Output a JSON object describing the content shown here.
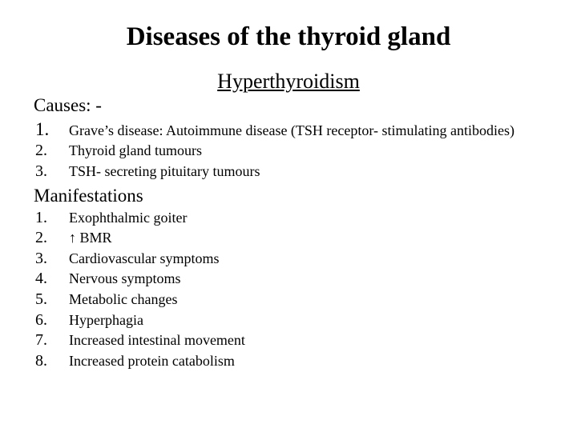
{
  "title": "Diseases of the thyroid gland",
  "subtitle": "Hyperthyroidism",
  "causes": {
    "heading": "Causes: -",
    "items": [
      {
        "n": "1.",
        "text": " Grave’s disease:  Autoimmune disease (TSH receptor- stimulating antibodies)",
        "big": true
      },
      {
        "n": "2.",
        "text": "Thyroid gland tumours",
        "big": false
      },
      {
        "n": "3.",
        "text": "TSH- secreting pituitary tumours",
        "big": false
      }
    ]
  },
  "manifest": {
    "heading": "Manifestations",
    "items": [
      {
        "n": "1.",
        "text": "Exophthalmic goiter"
      },
      {
        "n": "2.",
        "text": "↑ BMR"
      },
      {
        "n": "3.",
        "text": "Cardiovascular symptoms"
      },
      {
        "n": "4.",
        "text": "Nervous symptoms"
      },
      {
        "n": "5.",
        "text": "Metabolic changes"
      },
      {
        "n": "6.",
        "text": "Hyperphagia"
      },
      {
        "n": "7.",
        "text": "Increased intestinal movement"
      },
      {
        "n": "8.",
        "text": "Increased protein catabolism"
      }
    ]
  },
  "colors": {
    "text": "#000000",
    "background": "#ffffff"
  }
}
